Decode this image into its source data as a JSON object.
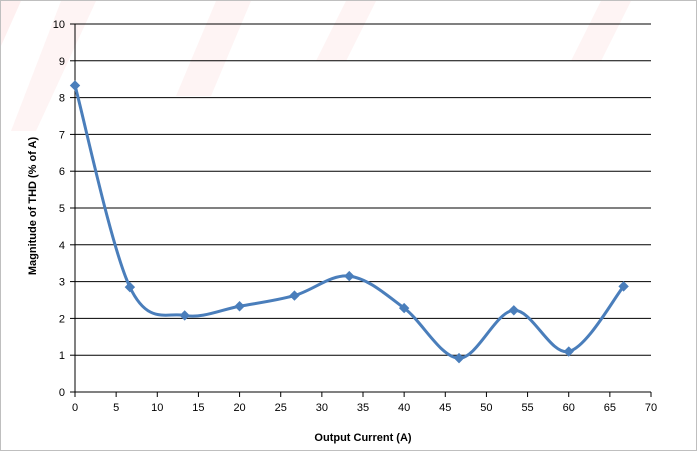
{
  "chart_data": {
    "type": "line",
    "xlabel": "Output Current (A)",
    "ylabel": "Magnitude of THD (% of A)",
    "xlim": [
      0,
      70
    ],
    "ylim": [
      0,
      10
    ],
    "x_ticks": [
      0,
      5,
      10,
      15,
      20,
      25,
      30,
      35,
      40,
      45,
      50,
      55,
      60,
      65,
      70
    ],
    "y_ticks": [
      0,
      1,
      2,
      3,
      4,
      5,
      6,
      7,
      8,
      9,
      10
    ],
    "grid": "horizontal",
    "legend": "none",
    "series": [
      {
        "color": "#4a7ebb",
        "marker": "diamond",
        "smooth": true,
        "x": [
          0,
          6.67,
          13.33,
          20,
          26.67,
          33.33,
          40,
          46.67,
          53.33,
          60,
          66.67
        ],
        "y": [
          8.33,
          2.85,
          2.08,
          2.33,
          2.62,
          3.15,
          2.28,
          0.92,
          2.22,
          1.1,
          2.87
        ]
      }
    ]
  }
}
